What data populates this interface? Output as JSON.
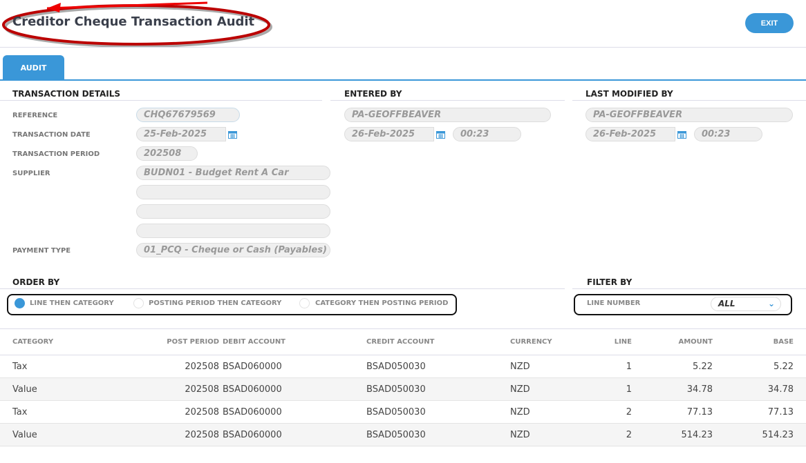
{
  "header": {
    "title": "Creditor Cheque Transaction Audit",
    "exit_label": "EXIT"
  },
  "tabs": [
    {
      "label": "AUDIT",
      "active": true
    }
  ],
  "accent_color": "#3a97d8",
  "transaction_details": {
    "heading": "TRANSACTION DETAILS",
    "reference_label": "REFERENCE",
    "reference": "CHQ67679569",
    "date_label": "TRANSACTION DATE",
    "date": "25-Feb-2025",
    "period_label": "TRANSACTION PERIOD",
    "period": "202508",
    "supplier_label": "SUPPLIER",
    "supplier": "BUDN01 - Budget Rent A Car",
    "payment_type_label": "PAYMENT TYPE",
    "payment_type": "01_PCQ - Cheque or Cash (Payables)"
  },
  "entered_by": {
    "heading": "ENTERED BY",
    "user": "PA-GEOFFBEAVER",
    "date": "26-Feb-2025",
    "time": "00:23"
  },
  "last_modified_by": {
    "heading": "LAST MODIFIED BY",
    "user": "PA-GEOFFBEAVER",
    "date": "26-Feb-2025",
    "time": "00:23"
  },
  "order_by": {
    "heading": "ORDER BY",
    "options": [
      "LINE THEN CATEGORY",
      "POSTING PERIOD THEN CATEGORY",
      "CATEGORY THEN POSTING PERIOD"
    ],
    "selected": 0
  },
  "filter_by": {
    "heading": "FILTER BY",
    "line_number_label": "LINE NUMBER",
    "line_number": "ALL"
  },
  "table": {
    "columns": [
      "CATEGORY",
      "POST PERIOD",
      "DEBIT ACCOUNT",
      "CREDIT ACCOUNT",
      "CURRENCY",
      "LINE",
      "AMOUNT",
      "BASE"
    ],
    "rows": [
      [
        "Tax",
        "202508",
        "BSAD060000",
        "BSAD050030",
        "NZD",
        "1",
        "5.22",
        "5.22"
      ],
      [
        "Value",
        "202508",
        "BSAD060000",
        "BSAD050030",
        "NZD",
        "1",
        "34.78",
        "34.78"
      ],
      [
        "Tax",
        "202508",
        "BSAD060000",
        "BSAD050030",
        "NZD",
        "2",
        "77.13",
        "77.13"
      ],
      [
        "Value",
        "202508",
        "BSAD060000",
        "BSAD050030",
        "NZD",
        "2",
        "514.23",
        "514.23"
      ]
    ]
  }
}
